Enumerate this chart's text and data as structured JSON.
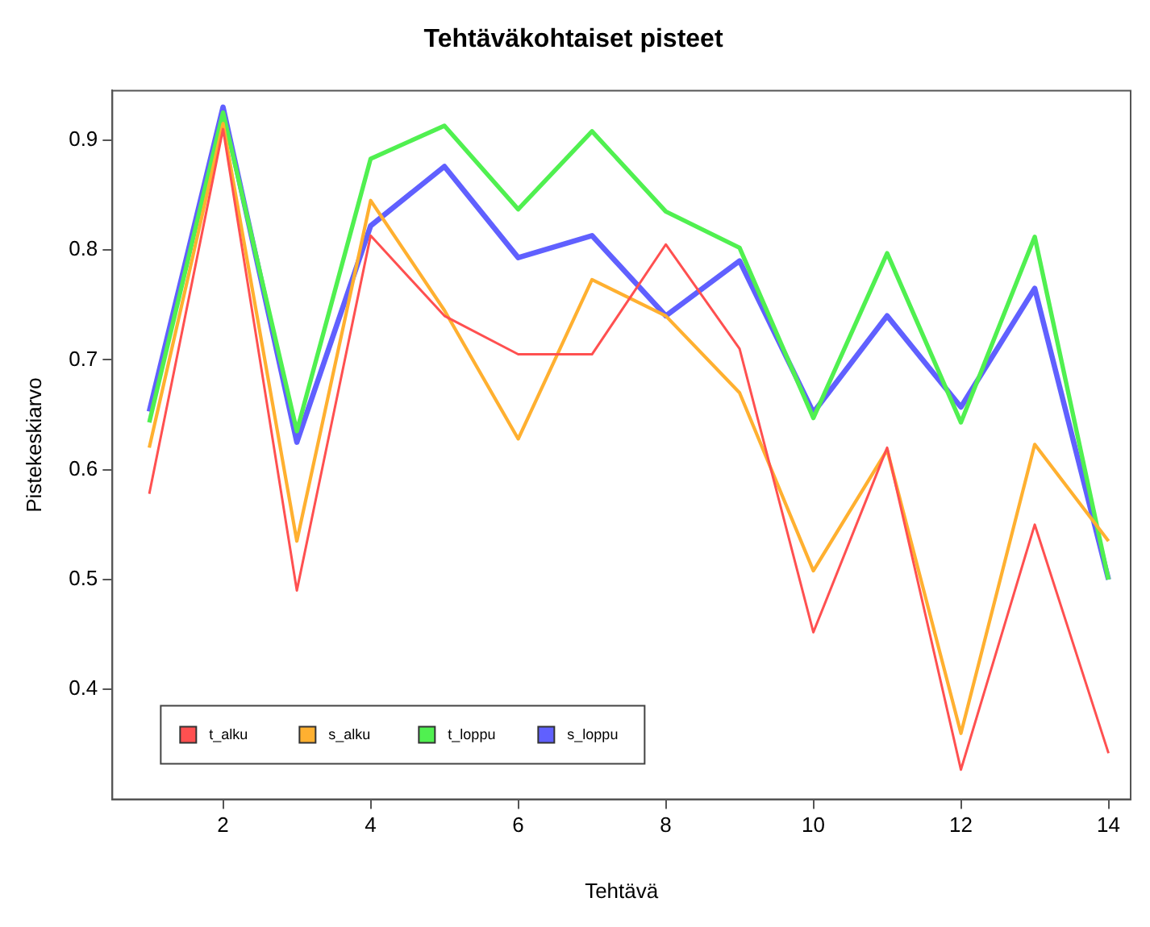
{
  "chart_data": {
    "type": "line",
    "title": "Tehtäväkohtaiset pisteet",
    "xlabel": "Tehtävä",
    "ylabel": "Pistekeskiarvo",
    "x": [
      1,
      2,
      3,
      4,
      5,
      6,
      7,
      8,
      9,
      10,
      11,
      12,
      13,
      14
    ],
    "series": [
      {
        "name": "t_alku",
        "color": "#ff5050",
        "values": [
          0.578,
          0.91,
          0.49,
          0.813,
          0.74,
          0.705,
          0.705,
          0.805,
          0.71,
          0.452,
          0.62,
          0.327,
          0.55,
          0.342
        ]
      },
      {
        "name": "s_alku",
        "color": "#ffb030",
        "values": [
          0.62,
          0.915,
          0.535,
          0.845,
          0.745,
          0.628,
          0.773,
          0.74,
          0.67,
          0.508,
          0.618,
          0.36,
          0.623,
          0.535
        ]
      },
      {
        "name": "t_loppu",
        "color": "#50f050",
        "values": [
          0.643,
          0.925,
          0.635,
          0.883,
          0.913,
          0.837,
          0.908,
          0.835,
          0.802,
          0.647,
          0.797,
          0.643,
          0.812,
          0.5
        ]
      },
      {
        "name": "s_loppu",
        "color": "#6060ff",
        "values": [
          0.653,
          0.93,
          0.625,
          0.822,
          0.876,
          0.793,
          0.813,
          0.74,
          0.79,
          0.652,
          0.74,
          0.657,
          0.765,
          0.5
        ]
      }
    ],
    "xlim": [
      0.5,
      14.3
    ],
    "xticks": [
      2,
      4,
      6,
      8,
      10,
      12,
      14
    ],
    "ylim": [
      0.3,
      0.945
    ],
    "yticks": [
      0.4,
      0.5,
      0.6,
      0.7,
      0.8,
      0.9
    ],
    "grid": false,
    "legend": "bottom left",
    "marker": "none",
    "line_style": "solid"
  }
}
